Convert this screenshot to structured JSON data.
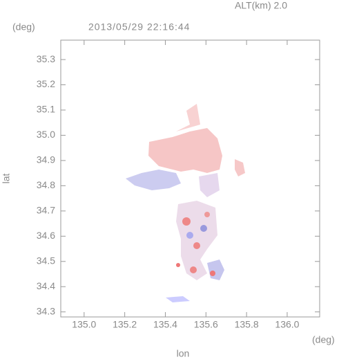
{
  "chart_data": {
    "type": "map",
    "corner_label": "ALT(km)  2.0",
    "title": "2013/05/29 22:16:44",
    "y_unit": "(deg)",
    "x_unit": "(deg)",
    "x_label": "lon",
    "y_label": "lat",
    "xlim": [
      134.885,
      136.16
    ],
    "ylim": [
      34.28,
      35.377
    ],
    "xticks": [
      {
        "value": 135,
        "label": "135.0"
      },
      135.2,
      135.4,
      135.6,
      135.8,
      {
        "value": 136,
        "label": "136.0"
      }
    ],
    "yticks": [
      34.3,
      34.4,
      34.5,
      34.6,
      34.7,
      34.8,
      34.9,
      {
        "value": 35,
        "label": "35.0"
      },
      35.1,
      35.2,
      35.3
    ],
    "grid": false
  }
}
